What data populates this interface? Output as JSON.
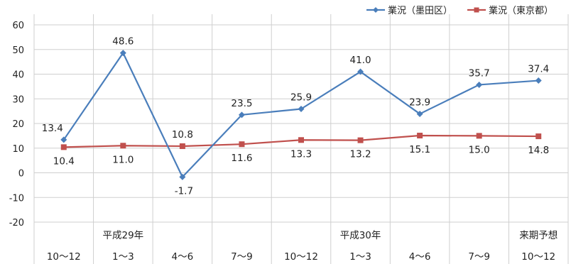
{
  "chart_data": {
    "type": "line",
    "categories": [
      "10〜12",
      "1〜3",
      "4〜6",
      "7〜9",
      "10〜12",
      "1〜3",
      "4〜6",
      "7〜9",
      "10〜12"
    ],
    "period_labels": [
      "",
      "平成29年",
      "",
      "",
      "",
      "平成30年",
      "",
      "",
      "来期予想"
    ],
    "series": [
      {
        "name": "業況（墨田区）",
        "color": "#4a7ebb",
        "marker": "diamond",
        "values": [
          13.4,
          48.6,
          -1.7,
          23.5,
          25.9,
          41.0,
          23.9,
          35.7,
          37.4
        ],
        "labels": [
          "13.4",
          "48.6",
          "-1.7",
          "23.5",
          "25.9",
          "41.0",
          "23.9",
          "35.7",
          "37.4"
        ]
      },
      {
        "name": "業況（東京都）",
        "color": "#c0504d",
        "marker": "square",
        "values": [
          10.4,
          11.0,
          10.8,
          11.6,
          13.3,
          13.2,
          15.1,
          15.0,
          14.8
        ],
        "labels": [
          "10.4",
          "11.0",
          "10.8",
          "11.6",
          "13.3",
          "13.2",
          "15.1",
          "15.0",
          "14.8"
        ]
      }
    ],
    "yticks": [
      "60",
      "50",
      "40",
      "30",
      "20",
      "10",
      "0",
      "-10",
      "-20"
    ],
    "ylim": [
      -20,
      60
    ],
    "ystep": 10,
    "grid": true,
    "legend": "top-right",
    "title": "",
    "xlabel": "",
    "ylabel": ""
  }
}
